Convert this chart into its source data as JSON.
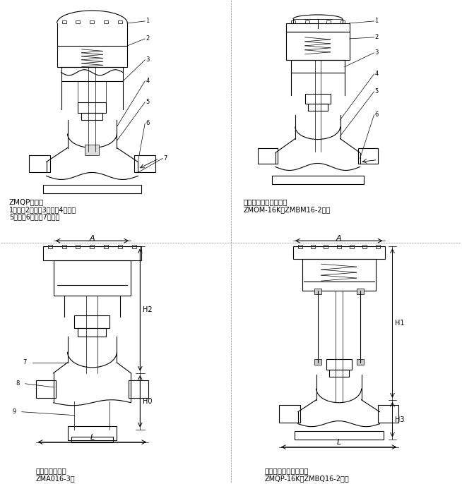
{
  "bg_color": "#ffffff",
  "line_color": "#000000",
  "title": "",
  "labels": {
    "top_left_title": "ZMQP单座型",
    "top_left_desc1": "1、膜犇2、推枆3、支杦4、阀杆",
    "top_left_desc2": "5、阀芯6、阀座7、阀体",
    "top_right_title": "套筒切断阀（带手轮）",
    "top_right_subtitle": "ZMOM-16K（ZMBM16-2）型",
    "bottom_left_title": "二位三通切断阀",
    "bottom_left_subtitle": "ZMA016-3型",
    "bottom_right_title": "单座切断阀（立柱式）",
    "bottom_right_subtitle": "ZMQP-16K（ZMBQ16-2）型"
  },
  "annotations": {
    "top_left": [
      "1",
      "2",
      "3",
      "4",
      "5",
      "6",
      "7"
    ],
    "top_right": [
      "1",
      "2",
      "3",
      "4",
      "5",
      "6"
    ],
    "bottom_left": [
      "7",
      "8",
      "9"
    ],
    "bottom_right": [
      "H1",
      "H3"
    ]
  }
}
